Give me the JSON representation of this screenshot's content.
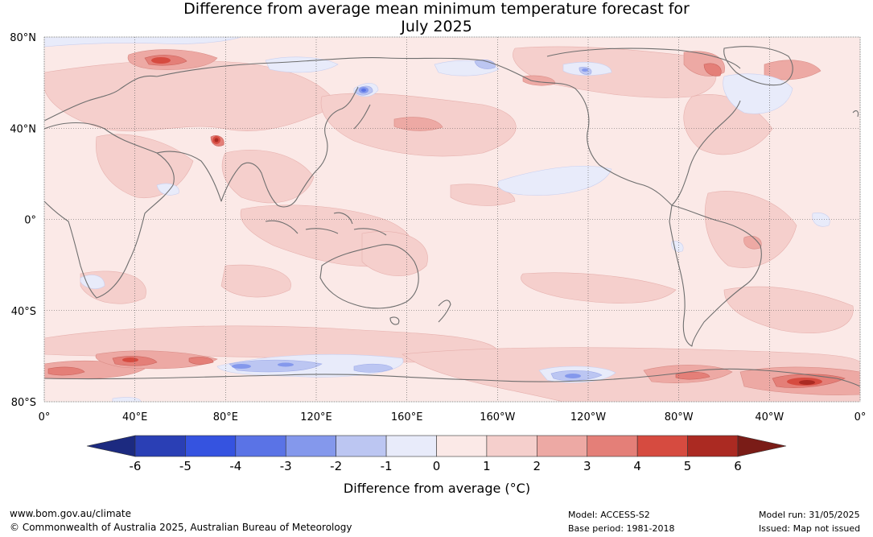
{
  "title": {
    "line1": "Difference from average mean minimum temperature forecast for",
    "line2": "July 2025"
  },
  "map": {
    "lat_labels": [
      "80°N",
      "40°N",
      "0°",
      "40°S",
      "80°S"
    ],
    "lat_values": [
      80,
      40,
      0,
      -40,
      -80
    ],
    "lon_labels": [
      "0°",
      "40°E",
      "80°E",
      "120°E",
      "160°E",
      "160°W",
      "120°W",
      "80°W",
      "40°W",
      "0°"
    ],
    "lon_values": [
      0,
      40,
      80,
      120,
      160,
      200,
      240,
      280,
      320,
      360
    ],
    "colors": {
      "ocean_base": "#fbe9e7",
      "land_outline": "#6e6e6e",
      "grid": "#555555"
    }
  },
  "colorbar": {
    "ticks": [
      "-6",
      "-5",
      "-4",
      "-3",
      "-2",
      "-1",
      "0",
      "1",
      "2",
      "3",
      "4",
      "5",
      "6"
    ],
    "colors": [
      "#1c2a80",
      "#2a3fb5",
      "#3553e0",
      "#5a73e6",
      "#8498ec",
      "#bcc6f2",
      "#e8ebfa",
      "#fbe9e7",
      "#f5cfcc",
      "#eda9a4",
      "#e47f78",
      "#d64b40",
      "#ab2a22",
      "#7a1c17"
    ],
    "label": "Difference from average (°C)"
  },
  "footer": {
    "url": "www.bom.gov.au/climate",
    "copyright": "© Commonwealth of Australia 2025, Australian Bureau of Meteorology",
    "model": "Model: ACCESS-S2",
    "base_period": "Base period: 1981-2018",
    "model_run": "Model run: 31/05/2025",
    "issued": "Issued: Map not issued"
  }
}
